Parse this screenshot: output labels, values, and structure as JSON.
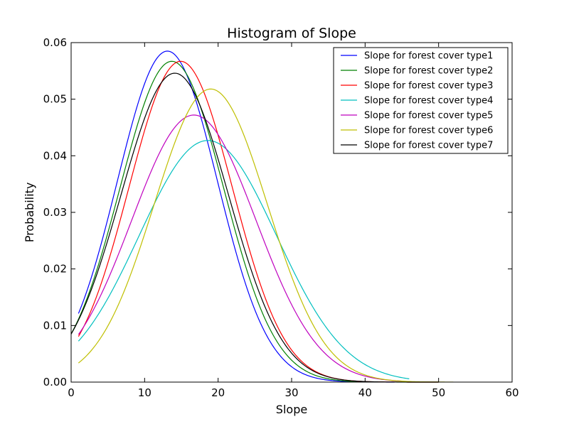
{
  "chart_data": {
    "type": "line",
    "title": "Histogram of Slope",
    "xlabel": "Slope",
    "ylabel": "Probability",
    "xlim": [
      0,
      60
    ],
    "ylim": [
      0,
      0.06
    ],
    "xticks": [
      "0",
      "10",
      "20",
      "30",
      "40",
      "50",
      "60"
    ],
    "yticks": [
      "0.00",
      "0.01",
      "0.02",
      "0.03",
      "0.04",
      "0.05",
      "0.06"
    ],
    "grid": false,
    "legend": "top-right",
    "series": [
      {
        "name": "Slope for forest cover type1",
        "color": "#0000ff",
        "x_range": [
          1,
          44
        ],
        "peak_x": 13.1,
        "peak_y": 0.0585
      },
      {
        "name": "Slope for forest cover type2",
        "color": "#008000",
        "x_range": [
          0,
          50
        ],
        "peak_x": 13.7,
        "peak_y": 0.0567
      },
      {
        "name": "Slope for forest cover type3",
        "color": "#ff0000",
        "x_range": [
          1,
          50
        ],
        "peak_x": 14.9,
        "peak_y": 0.0567
      },
      {
        "name": "Slope for forest cover type4",
        "color": "#00bfbf",
        "x_range": [
          1,
          46
        ],
        "peak_x": 18.6,
        "peak_y": 0.0427
      },
      {
        "name": "Slope for forest cover type5",
        "color": "#bf00bf",
        "x_range": [
          1,
          45
        ],
        "peak_x": 16.7,
        "peak_y": 0.0472
      },
      {
        "name": "Slope for forest cover type6",
        "color": "#bfbf00",
        "x_range": [
          1,
          52
        ],
        "peak_x": 19.0,
        "peak_y": 0.0518
      },
      {
        "name": "Slope for forest cover type7",
        "color": "#000000",
        "x_range": [
          0,
          50
        ],
        "peak_x": 14.1,
        "peak_y": 0.0546
      }
    ]
  }
}
